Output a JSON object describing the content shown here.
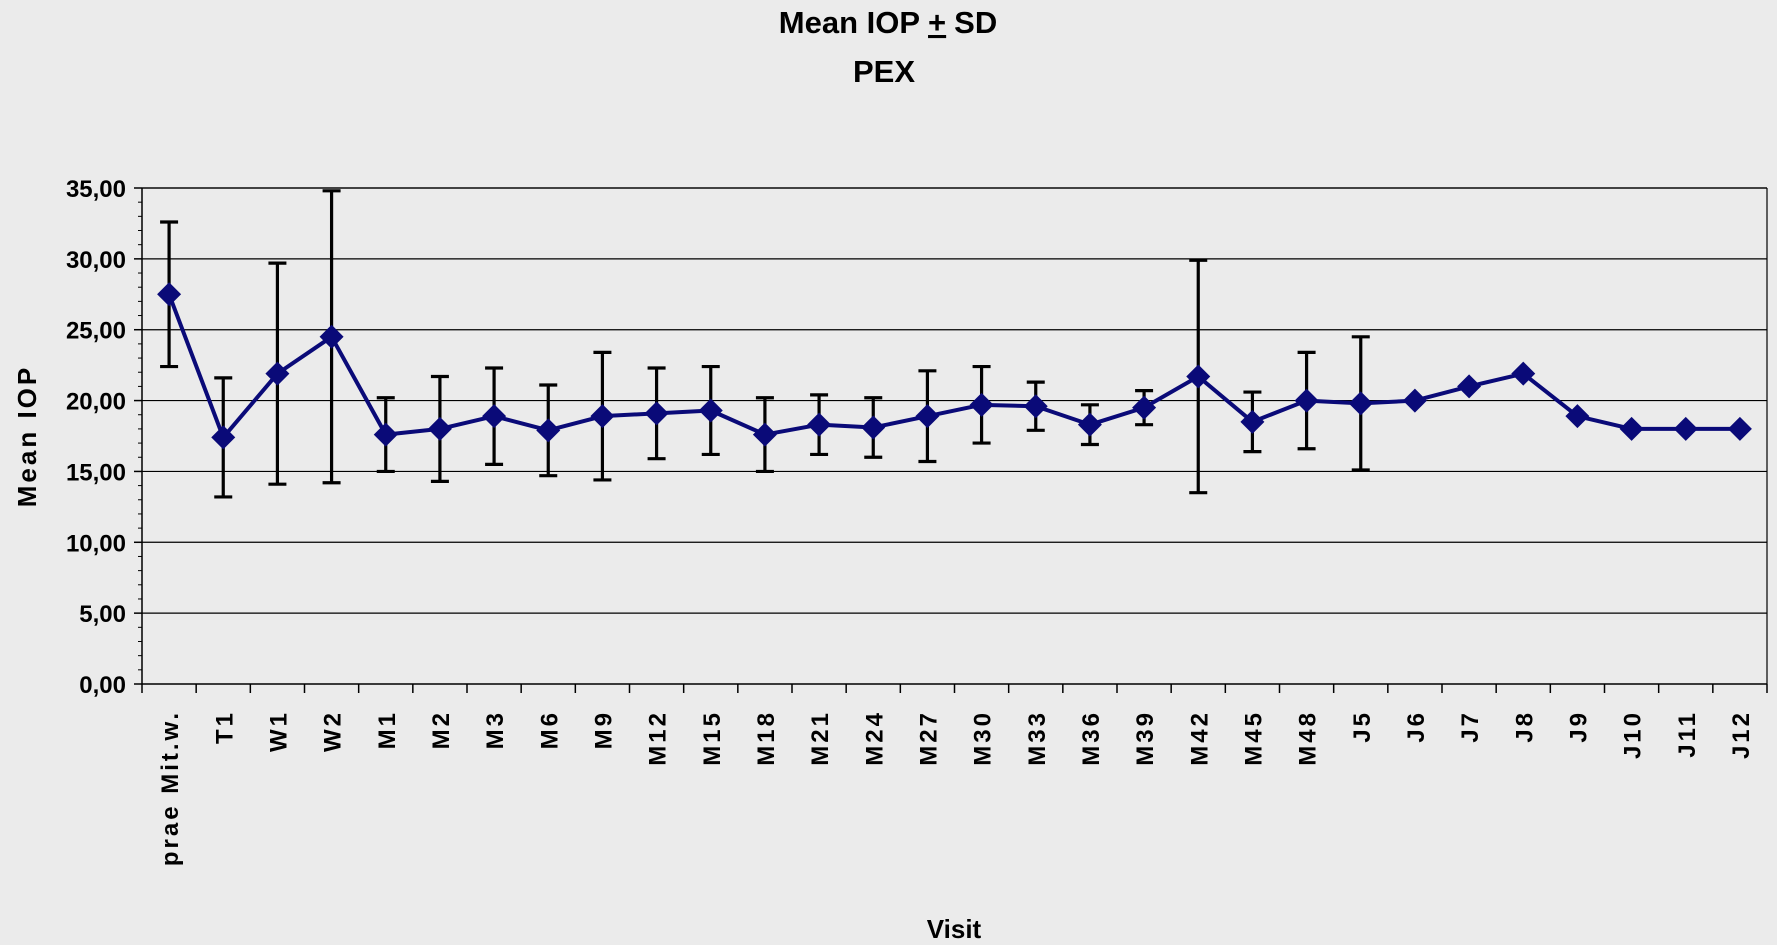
{
  "chart_data": {
    "type": "line",
    "title": "Mean IOP",
    "title_pm": "+",
    "title_sd": "SD",
    "subtitle": "PEX",
    "xlabel": "Visit",
    "ylabel": "Mean IOP",
    "ylim": [
      0,
      35
    ],
    "y_step": 5,
    "y_ticks": [
      "0,00",
      "5,00",
      "10,00",
      "15,00",
      "20,00",
      "25,00",
      "30,00",
      "35,00"
    ],
    "grid": true,
    "legend": "none",
    "categories": [
      "prae Mit.w.",
      "T1",
      "W1",
      "W2",
      "M1",
      "M2",
      "M3",
      "M6",
      "M9",
      "M12",
      "M15",
      "M18",
      "M21",
      "M24",
      "M27",
      "M30",
      "M33",
      "M36",
      "M39",
      "M42",
      "M45",
      "M48",
      "J5",
      "J6",
      "J7",
      "J8",
      "J9",
      "J10",
      "J11",
      "J12"
    ],
    "series": [
      {
        "values": [
          27.5,
          17.4,
          21.9,
          24.5,
          17.6,
          18.0,
          18.9,
          17.9,
          18.9,
          19.1,
          19.3,
          17.6,
          18.3,
          18.1,
          18.9,
          19.7,
          19.6,
          18.3,
          19.5,
          21.7,
          18.5,
          20.0,
          19.8,
          20.0,
          21.0,
          21.9,
          18.9,
          18.0,
          18.0,
          18.0
        ],
        "sd": [
          5.1,
          4.2,
          7.8,
          10.3,
          2.6,
          3.7,
          3.4,
          3.2,
          4.5,
          3.2,
          3.1,
          2.6,
          2.1,
          2.1,
          3.2,
          2.7,
          1.7,
          1.4,
          1.2,
          8.2,
          2.1,
          3.4,
          4.7,
          null,
          null,
          null,
          null,
          null,
          null,
          null
        ]
      }
    ],
    "colors": {
      "line": "#0a0a78",
      "error_bar": "#000000",
      "grid": "#000000",
      "background": "#ebebeb"
    }
  }
}
